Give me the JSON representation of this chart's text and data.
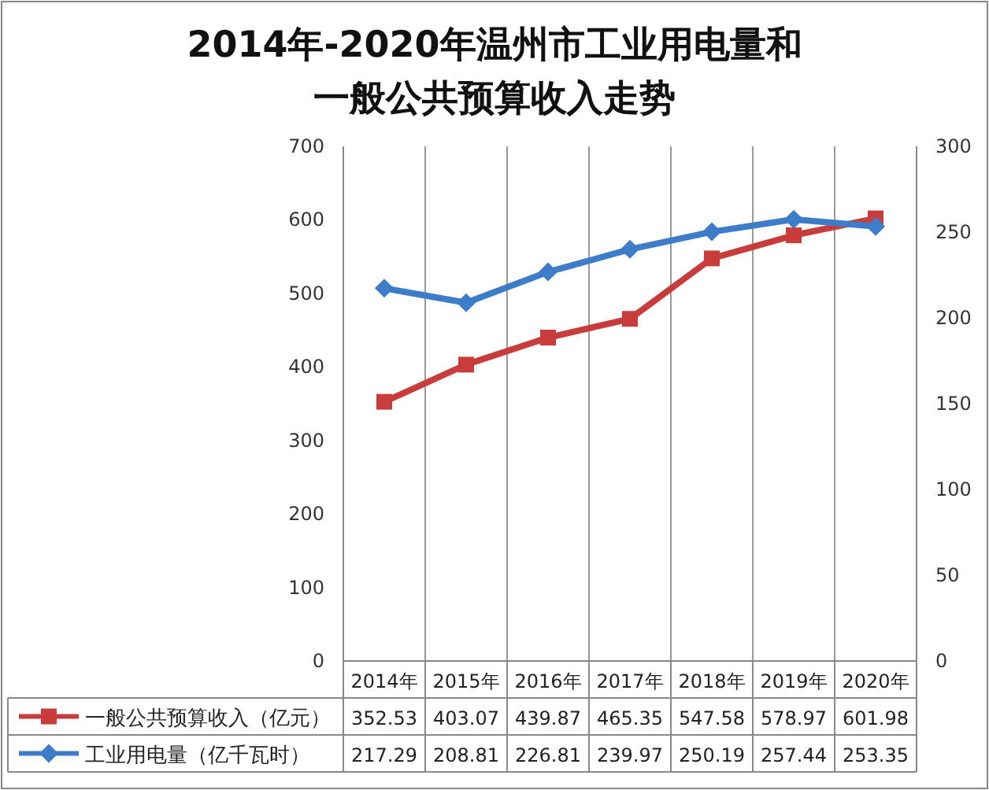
{
  "chart_data": {
    "type": "line",
    "title": "2014年-2020年温州市工业用电量和一般公共预算收入走势",
    "categories": [
      "2014年",
      "2015年",
      "2016年",
      "2017年",
      "2018年",
      "2019年",
      "2020年"
    ],
    "series": [
      {
        "name": "一般公共预算收入（亿元）",
        "color": "#c83c3c",
        "marker": "square",
        "values": [
          352.53,
          403.07,
          439.87,
          465.35,
          547.58,
          578.97,
          601.98
        ]
      },
      {
        "name": "工业用电量（亿千瓦时）",
        "color": "#3d7cc9",
        "marker": "diamond",
        "axis": "y2",
        "values": [
          217.29,
          208.81,
          226.81,
          239.97,
          250.19,
          257.44,
          253.35
        ]
      }
    ],
    "ylim": [
      0,
      700
    ],
    "yticks": [
      0,
      100,
      200,
      300,
      400,
      500,
      600,
      700
    ],
    "y2lim": [
      0,
      300
    ],
    "y2ticks": [
      0,
      50,
      100,
      150,
      200,
      250,
      300
    ],
    "grid": "x",
    "legend": "bottom",
    "data_labels": true
  }
}
